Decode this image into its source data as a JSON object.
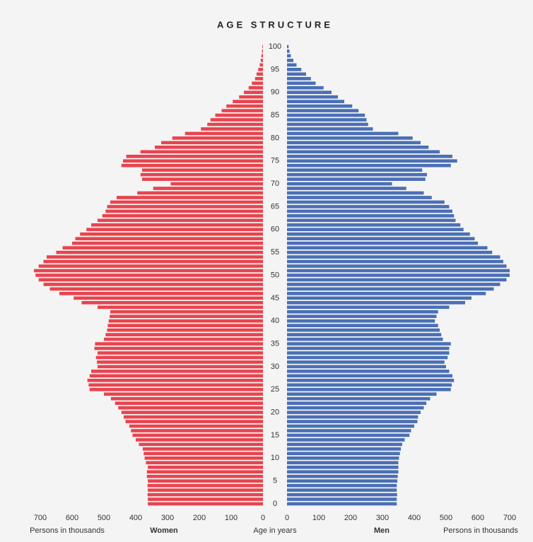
{
  "chart_data": {
    "type": "pyramid",
    "title": "AGE STRUCTURE",
    "y_label": "Age in years",
    "x_label": "Persons in thousands",
    "categories": [
      0,
      null,
      null,
      null,
      null,
      5,
      null,
      null,
      null,
      null,
      10,
      null,
      null,
      null,
      null,
      15,
      null,
      null,
      null,
      null,
      20,
      null,
      null,
      null,
      null,
      25,
      null,
      null,
      null,
      null,
      30,
      null,
      null,
      null,
      null,
      35,
      null,
      null,
      null,
      null,
      40,
      null,
      null,
      null,
      null,
      45,
      null,
      null,
      null,
      null,
      50,
      null,
      null,
      null,
      null,
      55,
      null,
      null,
      null,
      null,
      60,
      null,
      null,
      null,
      null,
      65,
      null,
      null,
      null,
      null,
      70,
      null,
      null,
      null,
      null,
      75,
      null,
      null,
      null,
      null,
      80,
      null,
      null,
      null,
      null,
      85,
      null,
      null,
      null,
      null,
      90,
      null,
      null,
      null,
      null,
      95,
      null,
      null,
      null,
      null,
      100
    ],
    "series": [
      {
        "name": "Women",
        "color": "#e8444e",
        "side": "left",
        "values": [
          362,
          362,
          363,
          362,
          363,
          362,
          365,
          365,
          362,
          368,
          372,
          375,
          378,
          390,
          400,
          410,
          415,
          420,
          432,
          438,
          445,
          455,
          465,
          478,
          500,
          545,
          548,
          552,
          545,
          540,
          520,
          522,
          525,
          520,
          530,
          528,
          500,
          495,
          490,
          488,
          485,
          482,
          480,
          520,
          570,
          595,
          640,
          670,
          690,
          705,
          715,
          720,
          705,
          690,
          680,
          650,
          630,
          600,
          590,
          575,
          555,
          540,
          520,
          505,
          495,
          490,
          480,
          460,
          395,
          345,
          290,
          380,
          385,
          380,
          445,
          440,
          430,
          385,
          340,
          320,
          285,
          245,
          195,
          175,
          165,
          150,
          130,
          115,
          95,
          75,
          60,
          45,
          35,
          25,
          20,
          15,
          10,
          7,
          5,
          3,
          2
        ]
      },
      {
        "name": "Men",
        "color": "#4a6fb5",
        "side": "right",
        "values": [
          345,
          345,
          346,
          345,
          345,
          347,
          348,
          350,
          350,
          350,
          352,
          355,
          358,
          362,
          370,
          385,
          390,
          400,
          410,
          412,
          420,
          430,
          438,
          450,
          470,
          515,
          518,
          525,
          520,
          510,
          500,
          495,
          505,
          510,
          510,
          515,
          490,
          485,
          480,
          475,
          465,
          470,
          475,
          510,
          560,
          580,
          625,
          650,
          670,
          690,
          700,
          700,
          690,
          680,
          670,
          645,
          630,
          600,
          590,
          575,
          555,
          545,
          530,
          525,
          520,
          510,
          495,
          455,
          430,
          375,
          330,
          435,
          440,
          425,
          515,
          535,
          520,
          480,
          445,
          420,
          395,
          350,
          270,
          255,
          250,
          245,
          225,
          205,
          180,
          160,
          140,
          115,
          90,
          75,
          60,
          45,
          30,
          20,
          12,
          8,
          5
        ]
      }
    ],
    "xlim": [
      0,
      700
    ],
    "xticks": [
      0,
      100,
      200,
      300,
      400,
      500,
      600,
      700
    ]
  }
}
